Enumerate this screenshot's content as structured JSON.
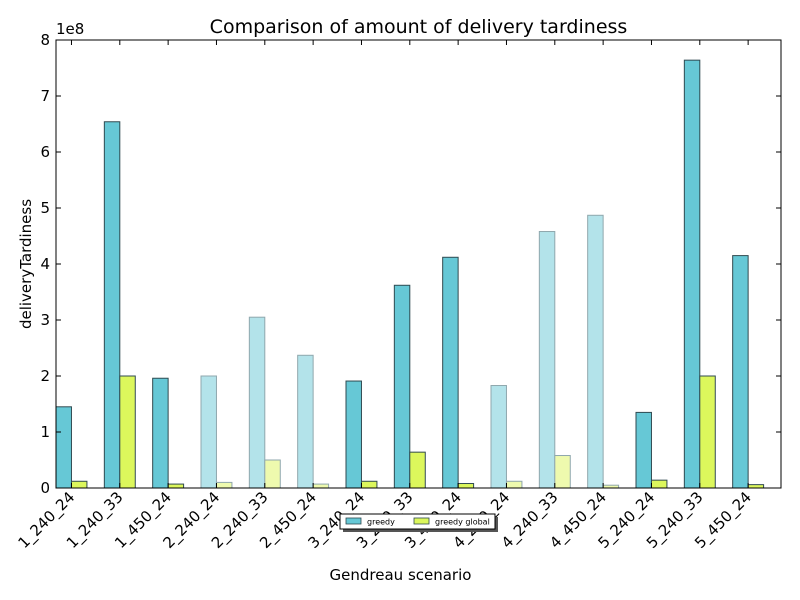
{
  "chart_data": {
    "type": "bar",
    "title": "Comparison of amount of delivery tardiness",
    "xlabel": "Gendreau scenario",
    "ylabel": "deliveryTardiness",
    "offset_text": "1e8",
    "ylim": [
      0,
      8
    ],
    "yticks": [
      "0",
      "1",
      "2",
      "3",
      "4",
      "5",
      "6",
      "7",
      "8"
    ],
    "categories": [
      "1_240_24",
      "1_240_33",
      "1_450_24",
      "2_240_24",
      "2_240_33",
      "2_450_24",
      "3_240_24",
      "3_240_33",
      "3_450_24",
      "4_240_24",
      "4_240_33",
      "4_450_24",
      "5_240_24",
      "5_240_33",
      "5_450_24"
    ],
    "faded": [
      false,
      false,
      false,
      true,
      true,
      true,
      false,
      false,
      false,
      true,
      true,
      true,
      false,
      false,
      false
    ],
    "series": [
      {
        "name": "greedy",
        "color": "#66c8d6",
        "faded_color": "#b3e3ea",
        "values": [
          1.45,
          6.54,
          1.96,
          2.0,
          3.05,
          2.37,
          1.91,
          3.62,
          4.12,
          1.83,
          4.58,
          4.87,
          1.35,
          7.64,
          4.15
        ]
      },
      {
        "name": "greedy global",
        "color": "#dcf75c",
        "faded_color": "#eefaae",
        "values": [
          0.12,
          2.0,
          0.07,
          0.1,
          0.5,
          0.07,
          0.12,
          0.64,
          0.08,
          0.12,
          0.58,
          0.05,
          0.14,
          2.0,
          0.06
        ]
      }
    ],
    "legend_position": "lower-center",
    "grid": false
  }
}
